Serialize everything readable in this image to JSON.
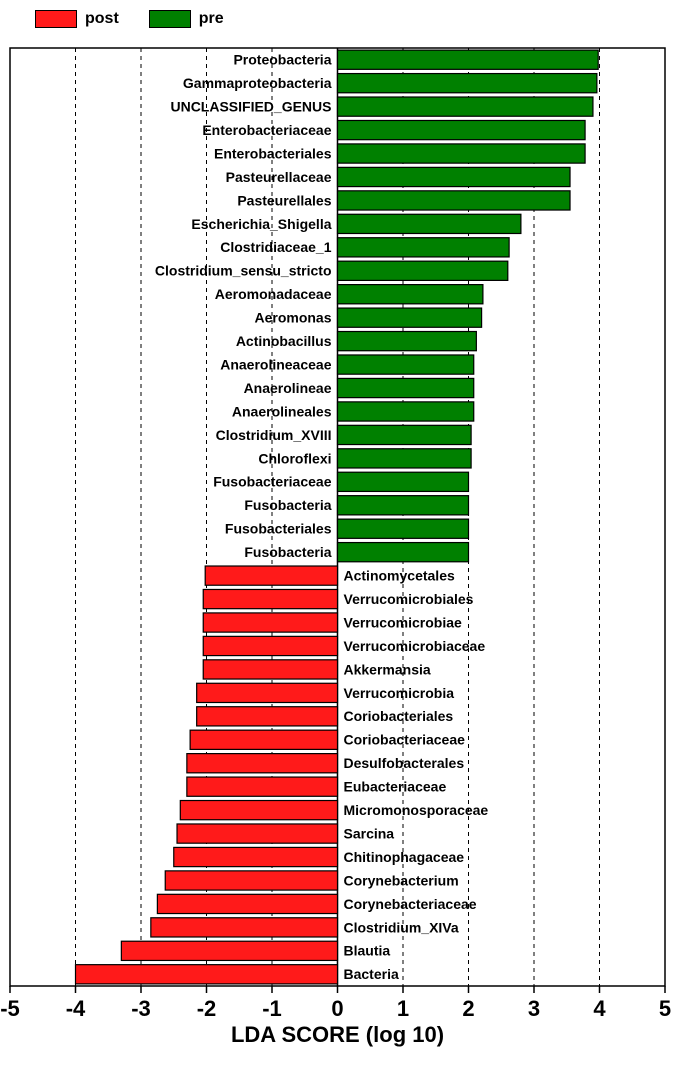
{
  "legend": {
    "items": [
      {
        "label": "post",
        "color": "#ff1a1a"
      },
      {
        "label": "pre",
        "color": "#008000"
      }
    ]
  },
  "chart": {
    "type": "bar-horizontal",
    "xlabel": "LDA SCORE (log 10)",
    "xlim": [
      -5,
      5
    ],
    "xtick_step": 1,
    "xticks": [
      -5,
      -4,
      -3,
      -2,
      -1,
      0,
      1,
      2,
      3,
      4,
      5
    ],
    "grid_xticks": [
      -5,
      -4,
      -3,
      -2,
      -1,
      1,
      2,
      3,
      4,
      5
    ],
    "background_color": "#ffffff",
    "grid_color": "#000000",
    "colors": {
      "post": "#ff1a1a",
      "pre": "#008000"
    },
    "label_fontsize": 14,
    "tick_fontsize": 22,
    "title_fontsize": 22,
    "bar_height_ratio": 0.82,
    "bars": [
      {
        "label": "Proteobacteria",
        "value": 3.98,
        "group": "pre"
      },
      {
        "label": "Gammaproteobacteria",
        "value": 3.96,
        "group": "pre"
      },
      {
        "label": "UNCLASSIFIED_GENUS",
        "value": 3.9,
        "group": "pre"
      },
      {
        "label": "Enterobacteriaceae",
        "value": 3.78,
        "group": "pre"
      },
      {
        "label": "Enterobacteriales",
        "value": 3.78,
        "group": "pre"
      },
      {
        "label": "Pasteurellaceae",
        "value": 3.55,
        "group": "pre"
      },
      {
        "label": "Pasteurellales",
        "value": 3.55,
        "group": "pre"
      },
      {
        "label": "Escherichia_Shigella",
        "value": 2.8,
        "group": "pre"
      },
      {
        "label": "Clostridiaceae_1",
        "value": 2.62,
        "group": "pre"
      },
      {
        "label": "Clostridium_sensu_stricto",
        "value": 2.6,
        "group": "pre"
      },
      {
        "label": "Aeromonadaceae",
        "value": 2.22,
        "group": "pre"
      },
      {
        "label": "Aeromonas",
        "value": 2.2,
        "group": "pre"
      },
      {
        "label": "Actinobacillus",
        "value": 2.12,
        "group": "pre"
      },
      {
        "label": "Anaerolineaceae",
        "value": 2.08,
        "group": "pre"
      },
      {
        "label": "Anaerolineae",
        "value": 2.08,
        "group": "pre"
      },
      {
        "label": "Anaerolineales",
        "value": 2.08,
        "group": "pre"
      },
      {
        "label": "Clostridium_XVIII",
        "value": 2.04,
        "group": "pre"
      },
      {
        "label": "Chloroflexi",
        "value": 2.04,
        "group": "pre"
      },
      {
        "label": "Fusobacteriaceae",
        "value": 2.0,
        "group": "pre"
      },
      {
        "label": "Fusobacteria",
        "value": 2.0,
        "group": "pre"
      },
      {
        "label": "Fusobacteriales",
        "value": 2.0,
        "group": "pre"
      },
      {
        "label": "Fusobacteria",
        "value": 2.0,
        "group": "pre"
      },
      {
        "label": "Actinomycetales",
        "value": -2.02,
        "group": "post"
      },
      {
        "label": "Verrucomicrobiales",
        "value": -2.05,
        "group": "post"
      },
      {
        "label": "Verrucomicrobiae",
        "value": -2.05,
        "group": "post"
      },
      {
        "label": "Verrucomicrobiaceae",
        "value": -2.05,
        "group": "post"
      },
      {
        "label": "Akkermansia",
        "value": -2.05,
        "group": "post"
      },
      {
        "label": "Verrucomicrobia",
        "value": -2.15,
        "group": "post"
      },
      {
        "label": "Coriobacteriales",
        "value": -2.15,
        "group": "post"
      },
      {
        "label": "Coriobacteriaceae",
        "value": -2.25,
        "group": "post"
      },
      {
        "label": "Desulfobacterales",
        "value": -2.3,
        "group": "post"
      },
      {
        "label": "Eubacteriaceae",
        "value": -2.3,
        "group": "post"
      },
      {
        "label": "Micromonosporaceae",
        "value": -2.4,
        "group": "post"
      },
      {
        "label": "Sarcina",
        "value": -2.45,
        "group": "post"
      },
      {
        "label": "Chitinophagaceae",
        "value": -2.5,
        "group": "post"
      },
      {
        "label": "Corynebacterium",
        "value": -2.63,
        "group": "post"
      },
      {
        "label": "Corynebacteriaceae",
        "value": -2.75,
        "group": "post"
      },
      {
        "label": "Clostridium_XIVa",
        "value": -2.85,
        "group": "post"
      },
      {
        "label": "Blautia",
        "value": -3.3,
        "group": "post"
      },
      {
        "label": "Bacteria",
        "value": -4.0,
        "group": "post"
      }
    ]
  }
}
